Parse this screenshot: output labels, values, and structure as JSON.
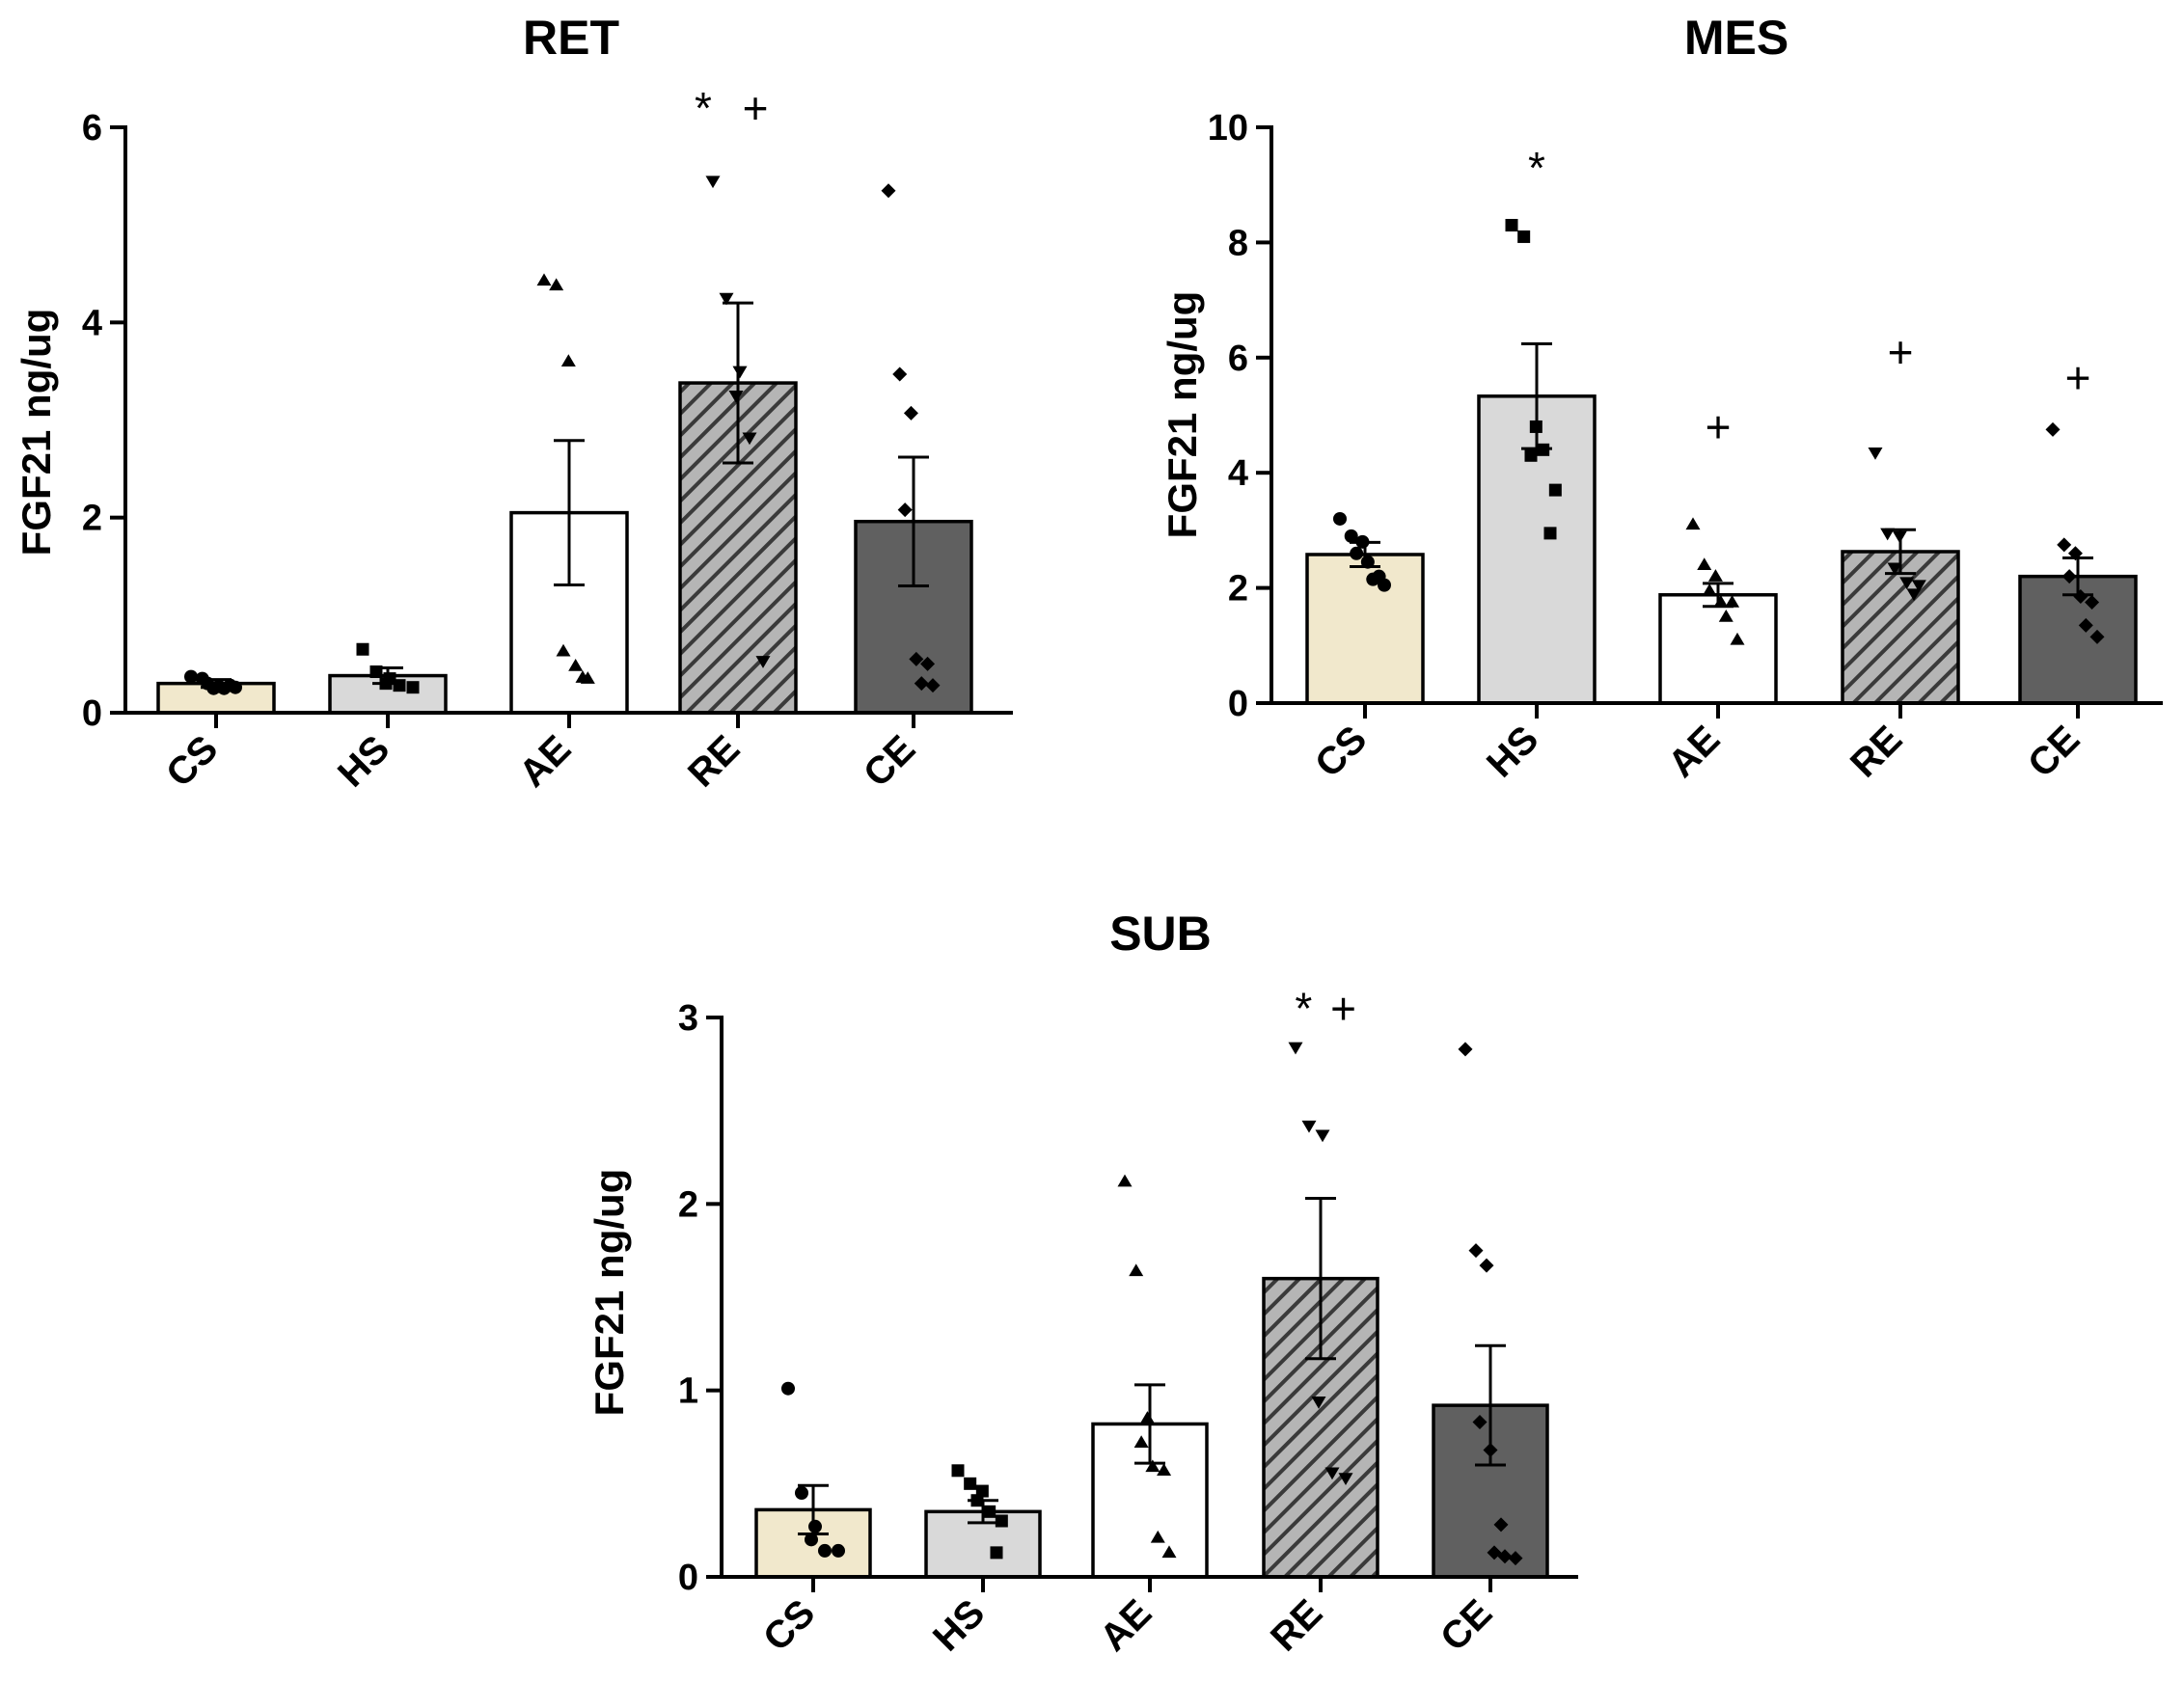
{
  "chart_data": [
    {
      "type": "bar",
      "title": "RET",
      "ylabel": "FGF21 ng/ug",
      "xlabel": "",
      "ylim": [
        0,
        6
      ],
      "yticks": [
        0,
        2,
        4,
        6
      ],
      "categories": [
        "CS",
        "HS",
        "AE",
        "RE",
        "CE"
      ],
      "values": [
        0.3,
        0.38,
        2.05,
        3.38,
        1.96
      ],
      "sem": [
        0.04,
        0.08,
        0.74,
        0.82,
        0.66
      ],
      "points": [
        [
          0.37,
          0.35,
          0.25,
          0.3,
          0.27,
          0.28,
          0.25,
          0.26
        ],
        [
          0.65,
          0.42,
          0.35,
          0.3,
          0.28,
          0.26
        ],
        [
          4.43,
          4.38,
          3.6,
          0.63,
          0.48,
          0.35,
          0.36
        ],
        [
          5.45,
          4.25,
          3.5,
          3.25,
          2.82,
          0.53
        ],
        [
          5.35,
          3.47,
          3.07,
          2.08,
          0.55,
          0.5,
          0.3,
          0.28
        ]
      ],
      "markers": [
        "circle",
        "square",
        "triangle-up",
        "triangle-down",
        "diamond"
      ],
      "annotations": [
        {
          "category": "RE",
          "text": "*",
          "offset": -0.3,
          "y": 6.2
        },
        {
          "category": "RE",
          "text": "+",
          "offset": 0.15,
          "y": 6.2
        }
      ]
    },
    {
      "type": "bar",
      "title": "MES",
      "ylabel": "FGF21 ng/ug",
      "xlabel": "",
      "ylim": [
        0,
        10
      ],
      "yticks": [
        0,
        2,
        4,
        6,
        8,
        10
      ],
      "categories": [
        "CS",
        "HS",
        "AE",
        "RE",
        "CE"
      ],
      "values": [
        2.58,
        5.33,
        1.88,
        2.63,
        2.2
      ],
      "sem": [
        0.21,
        0.91,
        0.2,
        0.38,
        0.32
      ],
      "points": [
        [
          3.2,
          2.9,
          2.8,
          2.6,
          2.45,
          2.2,
          2.15,
          2.05
        ],
        [
          8.3,
          8.1,
          4.8,
          4.3,
          4.4,
          3.7,
          2.95
        ],
        [
          3.1,
          2.4,
          2.2,
          1.95,
          1.75,
          1.75,
          1.5,
          1.1
        ],
        [
          4.35,
          2.95,
          2.9,
          2.35,
          2.1,
          2.05,
          1.9
        ],
        [
          4.75,
          2.75,
          2.6,
          2.2,
          1.85,
          1.75,
          1.35,
          1.15
        ]
      ],
      "markers": [
        "circle",
        "square",
        "triangle-up",
        "triangle-down",
        "diamond"
      ],
      "annotations": [
        {
          "category": "HS",
          "text": "*",
          "offset": 0,
          "y": 9.3
        },
        {
          "category": "AE",
          "text": "+",
          "offset": 0,
          "y": 4.8
        },
        {
          "category": "RE",
          "text": "+",
          "offset": 0,
          "y": 6.1
        },
        {
          "category": "CE",
          "text": "+",
          "offset": 0,
          "y": 5.65
        }
      ]
    },
    {
      "type": "bar",
      "title": "SUB",
      "ylabel": "FGF21 ng/ug",
      "xlabel": "",
      "ylim": [
        0,
        3
      ],
      "yticks": [
        0,
        1,
        2,
        3
      ],
      "categories": [
        "CS",
        "HS",
        "AE",
        "RE",
        "CE"
      ],
      "values": [
        0.36,
        0.35,
        0.82,
        1.6,
        0.92
      ],
      "sem": [
        0.13,
        0.06,
        0.21,
        0.43,
        0.32
      ],
      "points": [
        [
          1.01,
          0.45,
          0.27,
          0.2,
          0.14,
          0.14
        ],
        [
          0.57,
          0.5,
          0.46,
          0.41,
          0.35,
          0.3,
          0.13
        ],
        [
          2.12,
          1.64,
          0.85,
          0.72,
          0.59,
          0.57,
          0.21,
          0.13
        ],
        [
          2.84,
          2.42,
          2.37,
          0.94,
          0.56,
          0.53
        ],
        [
          2.83,
          1.75,
          1.67,
          0.83,
          0.68,
          0.28,
          0.13,
          0.11,
          0.1
        ]
      ],
      "markers": [
        "circle",
        "square",
        "triangle-up",
        "triangle-down",
        "diamond"
      ],
      "annotations": [
        {
          "category": "RE",
          "text": "*",
          "offset": -0.15,
          "y": 3.05
        },
        {
          "category": "RE",
          "text": "+",
          "offset": 0.2,
          "y": 3.05
        }
      ]
    }
  ],
  "style": {
    "bar_fills": [
      "#f1e8cc",
      "#d9d9d9",
      "#ffffff",
      "hatch",
      "#606060"
    ],
    "hatch_bg": "#b5b5b5",
    "hatch_line": "#3a3a3a",
    "ink": "#000000"
  }
}
